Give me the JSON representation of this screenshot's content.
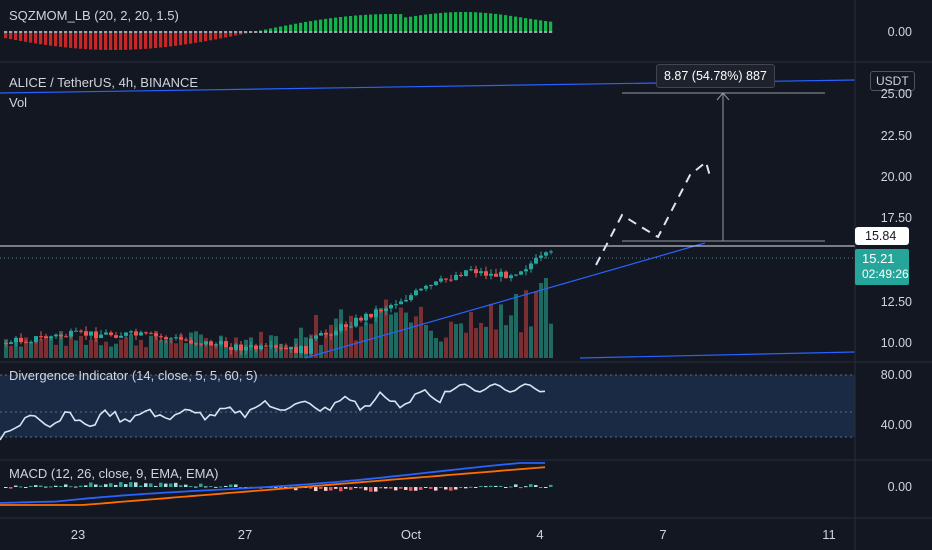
{
  "panels": {
    "sqz": {
      "title": "SQZMOM_LB (20, 2, 20, 1.5)",
      "axis_label": "0.00"
    },
    "main": {
      "symbol_title": "ALICE / TetherUS, 4h, BINANCE",
      "sub_label": "Vol",
      "currency": "USDT",
      "axis_labels": [
        "25.00",
        "22.50",
        "20.00",
        "17.50",
        "12.50",
        "10.00"
      ],
      "measure_label": "8.87 (54.78%) 887",
      "level_label": "15.84",
      "last_price": "15.21",
      "countdown": "02:49:26"
    },
    "div": {
      "title": "Divergence Indicator (14, close, 5, 5, 60, 5)",
      "axis_labels": [
        "80.00",
        "40.00"
      ]
    },
    "macd": {
      "title": "MACD (12, 26, close, 9, EMA, EMA)",
      "axis_label": "0.00"
    }
  },
  "time_axis": [
    "23",
    "27",
    "Oct",
    "4",
    "7",
    "11"
  ],
  "colors": {
    "background": "#131722",
    "up": "#26a69a",
    "down": "#ef5350",
    "trendline": "#2962ff",
    "macd_line": "#2962ff",
    "signal_line": "#ff6d00",
    "divergence_line": "#cfe8f3",
    "last_price_badge": "#26a69a"
  }
}
